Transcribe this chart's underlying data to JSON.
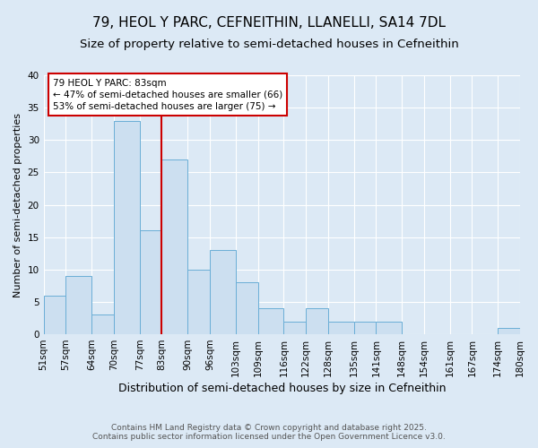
{
  "title": "79, HEOL Y PARC, CEFNEITHIN, LLANELLI, SA14 7DL",
  "subtitle": "Size of property relative to semi-detached houses in Cefneithin",
  "xlabel": "Distribution of semi-detached houses by size in Cefneithin",
  "ylabel": "Number of semi-detached properties",
  "bin_labels": [
    "51sqm",
    "57sqm",
    "64sqm",
    "70sqm",
    "77sqm",
    "83sqm",
    "90sqm",
    "96sqm",
    "103sqm",
    "109sqm",
    "116sqm",
    "122sqm",
    "128sqm",
    "135sqm",
    "141sqm",
    "148sqm",
    "154sqm",
    "161sqm",
    "167sqm",
    "174sqm",
    "180sqm"
  ],
  "bin_edges": [
    51,
    57,
    64,
    70,
    77,
    83,
    90,
    96,
    103,
    109,
    116,
    122,
    128,
    135,
    141,
    148,
    154,
    161,
    167,
    174,
    180
  ],
  "bar_heights": [
    6,
    9,
    3,
    33,
    16,
    27,
    10,
    13,
    8,
    4,
    2,
    4,
    2,
    2,
    2,
    0,
    0,
    0,
    0,
    1
  ],
  "bar_color": "#ccdff0",
  "bar_edgecolor": "#6aaed6",
  "ref_line_x": 83,
  "ref_line_color": "#cc0000",
  "annotation_text": "79 HEOL Y PARC: 83sqm\n← 47% of semi-detached houses are smaller (66)\n53% of semi-detached houses are larger (75) →",
  "annotation_box_edgecolor": "#cc0000",
  "annotation_box_facecolor": "#ffffff",
  "ylim": [
    0,
    40
  ],
  "yticks": [
    0,
    5,
    10,
    15,
    20,
    25,
    30,
    35,
    40
  ],
  "background_color": "#dce9f5",
  "plot_background_color": "#dce9f5",
  "footer_line1": "Contains HM Land Registry data © Crown copyright and database right 2025.",
  "footer_line2": "Contains public sector information licensed under the Open Government Licence v3.0.",
  "title_fontsize": 11,
  "subtitle_fontsize": 9.5,
  "xlabel_fontsize": 9,
  "ylabel_fontsize": 8,
  "tick_fontsize": 7.5,
  "annotation_fontsize": 7.5,
  "footer_fontsize": 6.5
}
